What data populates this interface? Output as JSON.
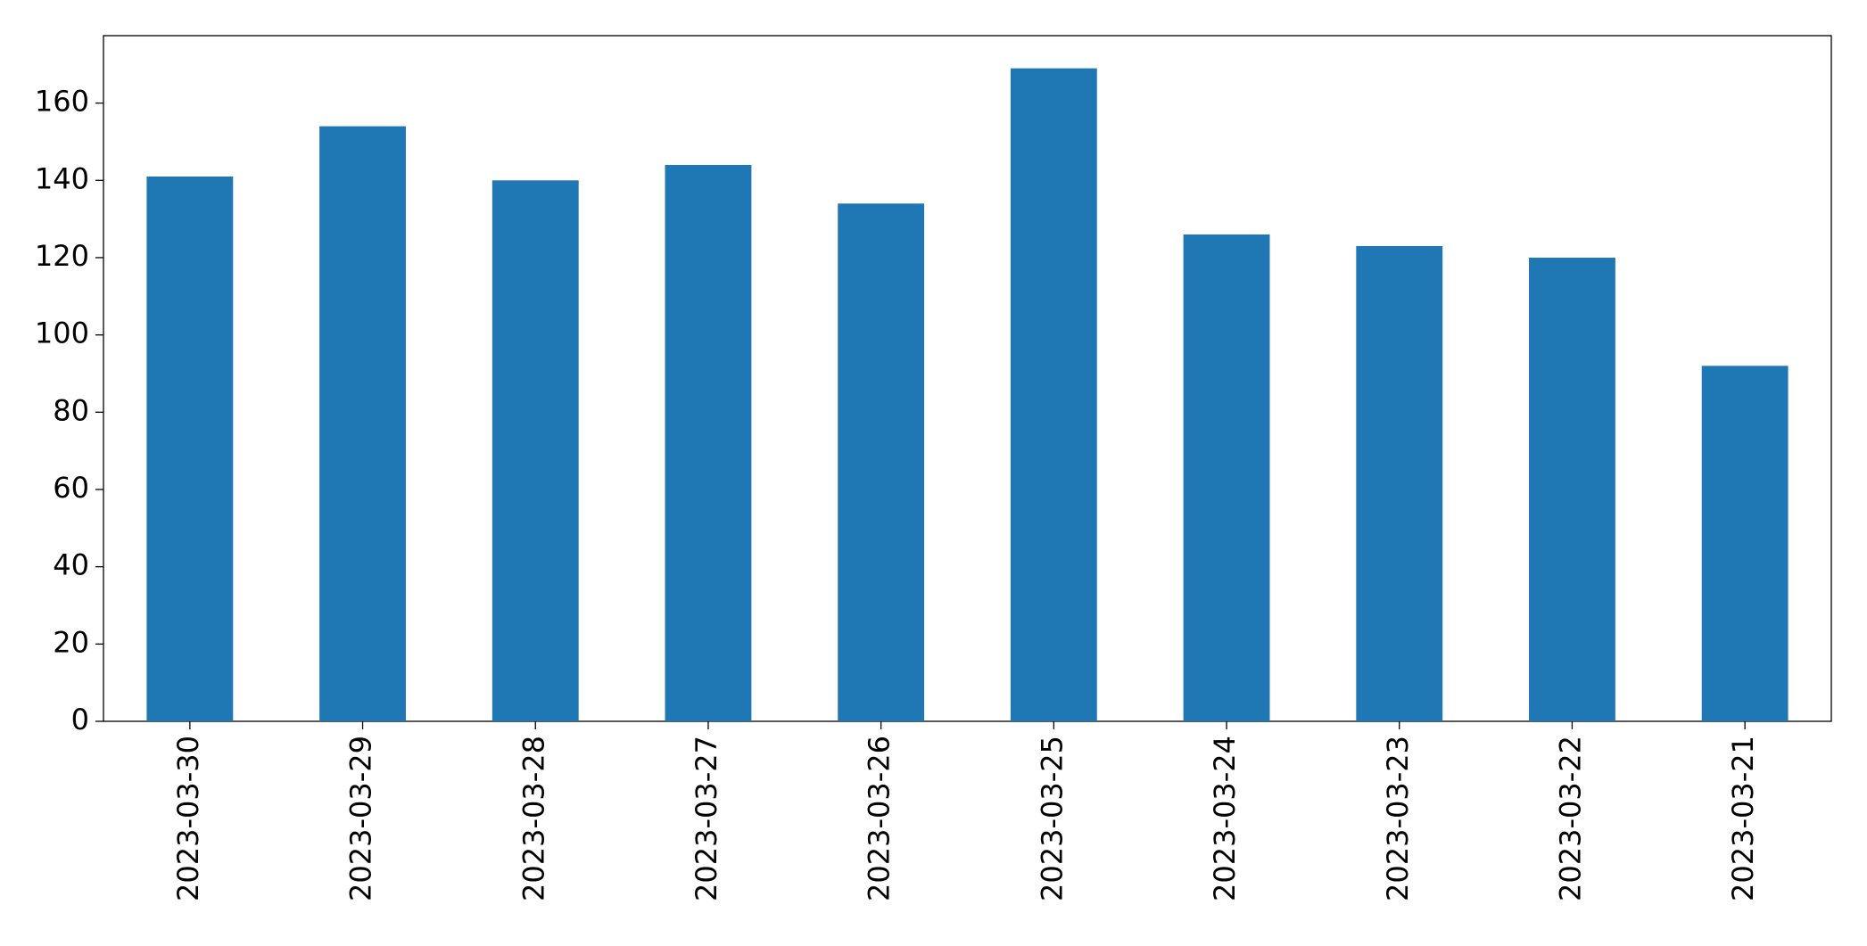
{
  "chart_data": {
    "type": "bar",
    "categories": [
      "2023-03-30",
      "2023-03-29",
      "2023-03-28",
      "2023-03-27",
      "2023-03-26",
      "2023-03-25",
      "2023-03-24",
      "2023-03-23",
      "2023-03-22",
      "2023-03-21"
    ],
    "values": [
      141,
      154,
      140,
      144,
      134,
      169,
      126,
      123,
      120,
      92
    ],
    "color": "#1f77b4",
    "ylim": [
      0,
      177.45
    ],
    "yticks": [
      0,
      20,
      40,
      60,
      80,
      100,
      120,
      140,
      160
    ],
    "grid": false
  }
}
